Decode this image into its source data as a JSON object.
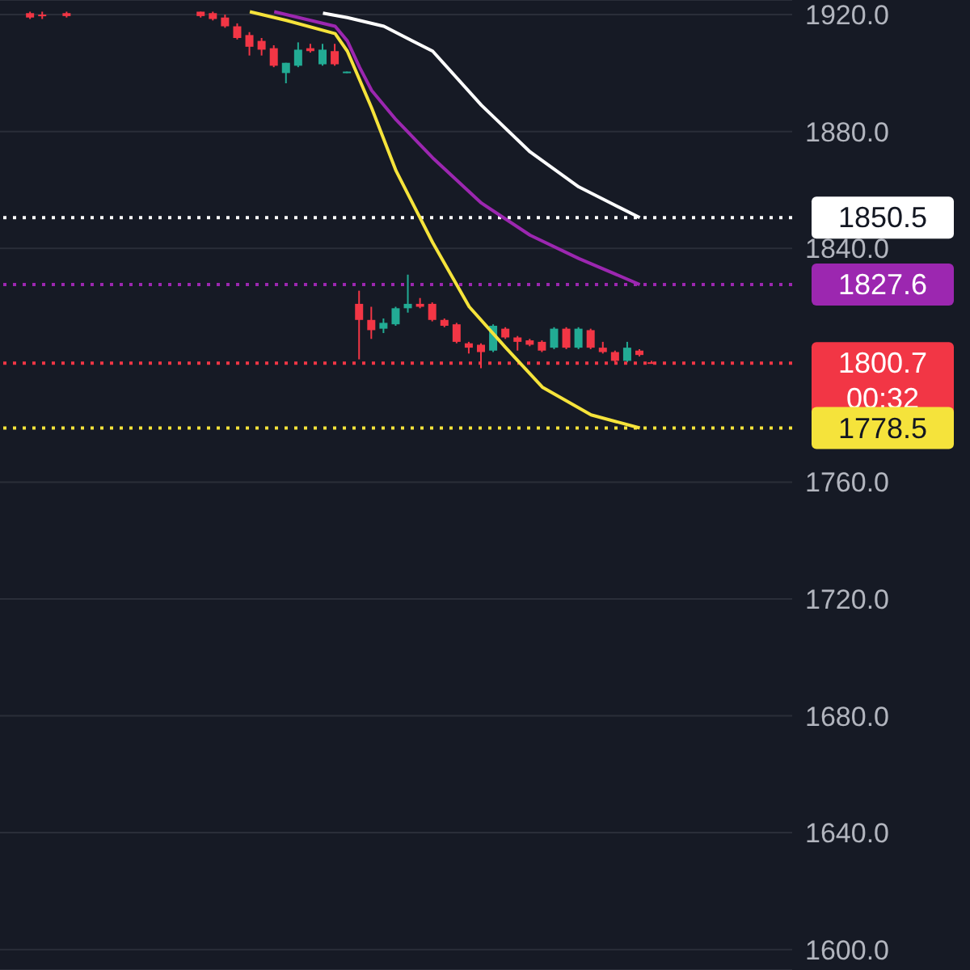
{
  "chart_data": {
    "type": "candlestick",
    "categories": [
      null,
      null,
      null,
      null,
      null,
      null,
      null,
      null,
      null,
      null,
      null,
      null,
      null,
      null,
      null,
      null,
      null,
      null,
      null,
      null,
      null,
      null,
      null,
      null,
      null,
      null,
      null,
      null,
      null,
      null,
      null,
      null,
      null,
      null,
      null,
      null,
      null,
      null,
      null,
      null,
      null,
      null,
      null,
      null,
      null,
      null,
      null,
      null,
      null,
      null,
      null,
      null,
      null,
      null,
      null,
      null,
      null,
      null,
      null,
      null,
      null,
      null,
      null,
      null,
      null
    ],
    "ohlc": [
      null,
      null,
      [
        1920.5,
        1921,
        1918.5,
        1919
      ],
      [
        1920,
        1921,
        1918.5,
        1919.5
      ],
      null,
      [
        1920.5,
        1921,
        1919,
        1919.5
      ],
      null,
      null,
      null,
      null,
      null,
      null,
      null,
      null,
      null,
      null,
      [
        1921,
        1921,
        1919,
        1919.5
      ],
      [
        1920.5,
        1921,
        1918,
        1918.5
      ],
      [
        1919,
        1920,
        1915.5,
        1916
      ],
      [
        1916,
        1917,
        1911.5,
        1912
      ],
      [
        1913,
        1914,
        1906,
        1909
      ],
      [
        1911,
        1912,
        1906,
        1908
      ],
      [
        1908.5,
        1909.5,
        1902,
        1902.5
      ],
      [
        1900,
        1903.5,
        1896.5,
        1903.5
      ],
      [
        1902.5,
        1910.5,
        1902,
        1908
      ],
      [
        1908.5,
        1910,
        1907,
        1907.5
      ],
      [
        1903,
        1910,
        1902.5,
        1908
      ],
      [
        1907.5,
        1910,
        1902.5,
        1903
      ],
      [
        1900,
        1900.5,
        1900,
        1900.5
      ],
      [
        1821,
        1825.5,
        1802,
        1815.5
      ],
      [
        1815.5,
        1820,
        1809,
        1812
      ],
      [
        1812.5,
        1816,
        1811,
        1814.5
      ],
      [
        1814,
        1820,
        1813.5,
        1819.5
      ],
      [
        1819.5,
        1831,
        1818,
        1821
      ],
      [
        1821,
        1823,
        1819.5,
        1820
      ],
      [
        1821,
        1821.5,
        1815,
        1815.5
      ],
      [
        1815.5,
        1816,
        1813,
        1813.5
      ],
      [
        1814,
        1814.5,
        1807.5,
        1808
      ],
      [
        1807.5,
        1808,
        1804,
        1806
      ],
      [
        1807,
        1807.5,
        1799,
        1804.5
      ],
      [
        1805,
        1814,
        1804.5,
        1813.5
      ],
      [
        1812.5,
        1813,
        1809,
        1809.5
      ],
      [
        1809.5,
        1810,
        1805,
        1808
      ],
      [
        1808.5,
        1809,
        1806.5,
        1807
      ],
      [
        1808,
        1808.5,
        1804.5,
        1805
      ],
      [
        1806,
        1813,
        1805.5,
        1812.5
      ],
      [
        1812.5,
        1813,
        1805.5,
        1806
      ],
      [
        1806,
        1813,
        1805.5,
        1812.5
      ],
      [
        1812,
        1812.5,
        1805.5,
        1806
      ],
      [
        1806,
        1808,
        1804,
        1804.5
      ],
      [
        1804.5,
        1805,
        1801,
        1801.5
      ],
      [
        1801.5,
        1808,
        1801,
        1806
      ],
      [
        1805,
        1805.5,
        1803,
        1803.5
      ],
      [
        1801,
        1801.5,
        1800.5,
        1800.7
      ],
      null,
      null,
      null,
      null,
      null,
      null,
      null,
      null,
      null,
      null,
      null
    ],
    "series": [
      {
        "type": "line",
        "color": "#ffffff",
        "values": [
          null,
          null,
          null,
          null,
          null,
          null,
          null,
          null,
          null,
          null,
          null,
          null,
          null,
          null,
          null,
          null,
          null,
          null,
          null,
          null,
          null,
          null,
          null,
          null,
          null,
          null,
          1920.5,
          null,
          1919,
          null,
          null,
          1916,
          null,
          null,
          null,
          1907.5,
          null,
          null,
          null,
          1889,
          null,
          null,
          null,
          1873,
          null,
          null,
          null,
          1861,
          null,
          null,
          null,
          null,
          1850.5,
          null,
          null,
          null,
          null,
          null,
          null,
          null,
          null,
          null,
          null,
          null,
          null
        ]
      },
      {
        "type": "line",
        "color": "#9c27b0",
        "values": [
          null,
          null,
          null,
          null,
          null,
          null,
          null,
          null,
          null,
          null,
          null,
          null,
          null,
          null,
          null,
          null,
          null,
          null,
          null,
          null,
          null,
          null,
          1921,
          null,
          null,
          null,
          null,
          1916,
          1911,
          1902,
          1894,
          null,
          1884,
          null,
          null,
          1871,
          null,
          null,
          null,
          1855.5,
          null,
          null,
          null,
          1844.5,
          null,
          null,
          null,
          1836.5,
          null,
          null,
          null,
          null,
          1827.6,
          null,
          null,
          null,
          null,
          null,
          null,
          null,
          null,
          null,
          null,
          null,
          null
        ]
      },
      {
        "type": "line",
        "color": "#f5e33b",
        "values": [
          null,
          null,
          null,
          null,
          null,
          null,
          null,
          null,
          null,
          null,
          null,
          null,
          null,
          null,
          null,
          null,
          null,
          null,
          null,
          null,
          1921,
          null,
          null,
          1918,
          null,
          null,
          null,
          1913.5,
          1907.5,
          null,
          1888,
          null,
          1866.5,
          null,
          null,
          1842,
          null,
          null,
          1820,
          null,
          null,
          1806,
          null,
          null,
          1792.5,
          null,
          null,
          null,
          1783,
          null,
          null,
          null,
          1778.5,
          null,
          null,
          null,
          null,
          null,
          null,
          null,
          null,
          null,
          null,
          null,
          null
        ]
      }
    ],
    "ylim": [
      1593,
      1925
    ],
    "yticks": [
      {
        "value": 1600,
        "label": "1600.0"
      },
      {
        "value": 1640,
        "label": "1640.0"
      },
      {
        "value": 1680,
        "label": "1680.0"
      },
      {
        "value": 1720,
        "label": "1720.0"
      },
      {
        "value": 1760,
        "label": "1760.0"
      },
      {
        "value": 1840,
        "label": "1840.0"
      },
      {
        "value": 1880,
        "label": "1880.0"
      },
      {
        "value": 1920,
        "label": "1920.0"
      }
    ],
    "ref_lines": [
      {
        "axis": "y",
        "value": 1850.5,
        "label": "1850.5",
        "color": "#ffffff",
        "line_style": "dotted"
      },
      {
        "axis": "y",
        "value": 1827.6,
        "label": "1827.6",
        "color": "#9c27b0",
        "line_style": "dotted"
      },
      {
        "axis": "y",
        "value": 1800.7,
        "label": "1800.7",
        "color": "#f23645",
        "line_style": "dotted"
      },
      {
        "axis": "y",
        "value": 1778.5,
        "label": "1778.5",
        "color": "#f5e33b",
        "line_style": "dotted"
      }
    ],
    "annotations": [
      "00:32"
    ],
    "grid": "y",
    "tick_labels": "y",
    "legend": false
  }
}
